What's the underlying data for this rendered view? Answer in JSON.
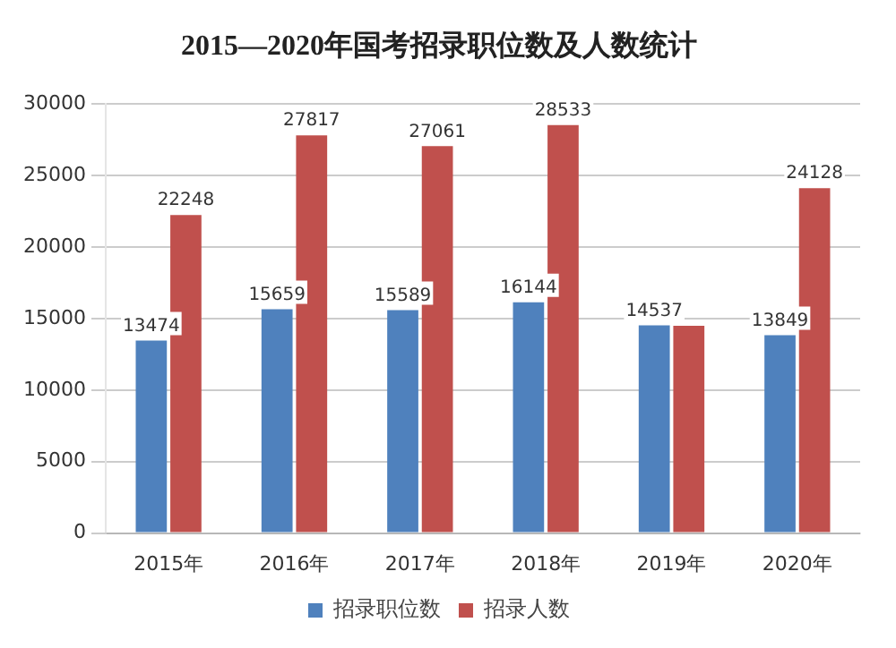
{
  "chart_data": {
    "type": "bar",
    "title": "2015—2020年国考招录职位数及人数统计",
    "categories": [
      "2015年",
      "2016年",
      "2017年",
      "2018年",
      "2019年",
      "2020年"
    ],
    "series": [
      {
        "name": "招录职位数",
        "color": "#4f81bd",
        "values": [
          13474,
          15659,
          15589,
          16144,
          14537,
          13849
        ],
        "value_labels": [
          "13474",
          "15659",
          "15589",
          "16144",
          "14537",
          "13849"
        ]
      },
      {
        "name": "招录人数",
        "color": "#c0504d",
        "values": [
          22248,
          27817,
          27061,
          28533,
          14500,
          24128
        ],
        "value_labels": [
          "22248",
          "27817",
          "27061",
          "28533",
          null,
          "24128"
        ]
      }
    ],
    "ylim": [
      0,
      30000
    ],
    "yticks": [
      0,
      5000,
      10000,
      15000,
      20000,
      25000,
      30000
    ],
    "grid": "y",
    "legend": "bottom"
  }
}
